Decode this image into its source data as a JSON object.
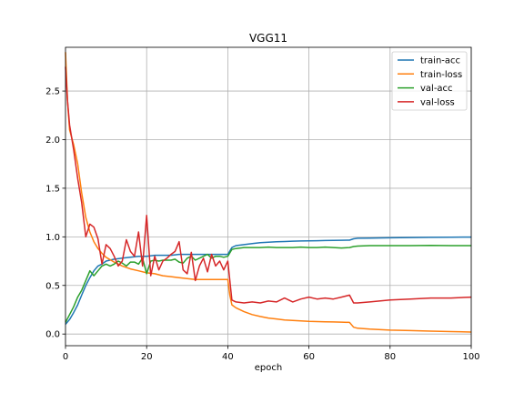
{
  "chart_data": {
    "type": "line",
    "title": "VGG11",
    "xlabel": "epoch",
    "ylabel": "",
    "xlim": [
      0,
      100
    ],
    "ylim": [
      -0.12,
      2.95
    ],
    "xticks": [
      0,
      20,
      40,
      60,
      80,
      100
    ],
    "yticks": [
      0.0,
      0.5,
      1.0,
      1.5,
      2.0,
      2.5
    ],
    "xtick_labels": [
      "0",
      "20",
      "40",
      "60",
      "80",
      "100"
    ],
    "ytick_labels": [
      "0.0",
      "0.5",
      "1.0",
      "1.5",
      "2.0",
      "2.5"
    ],
    "grid": true,
    "legend_position": "top-right",
    "series": [
      {
        "name": "train-acc",
        "color": "#1f77b4",
        "x": [
          0,
          1,
          2,
          3,
          4,
          5,
          6,
          7,
          8,
          9,
          10,
          12,
          14,
          16,
          18,
          20,
          22,
          24,
          26,
          28,
          30,
          32,
          34,
          36,
          38,
          40,
          41,
          42,
          44,
          46,
          48,
          50,
          52,
          54,
          56,
          58,
          60,
          62,
          64,
          66,
          68,
          70,
          71,
          72,
          75,
          80,
          85,
          90,
          95,
          100
        ],
        "values": [
          0.1,
          0.15,
          0.22,
          0.3,
          0.4,
          0.5,
          0.58,
          0.65,
          0.7,
          0.72,
          0.75,
          0.77,
          0.78,
          0.79,
          0.8,
          0.8,
          0.81,
          0.81,
          0.81,
          0.82,
          0.82,
          0.82,
          0.82,
          0.82,
          0.82,
          0.82,
          0.89,
          0.91,
          0.92,
          0.93,
          0.94,
          0.945,
          0.95,
          0.952,
          0.955,
          0.957,
          0.958,
          0.96,
          0.962,
          0.963,
          0.965,
          0.966,
          0.98,
          0.985,
          0.987,
          0.99,
          0.993,
          0.995,
          0.997,
          0.998
        ]
      },
      {
        "name": "train-loss",
        "color": "#ff7f0e",
        "x": [
          0,
          0.5,
          1,
          2,
          3,
          4,
          5,
          6,
          7,
          8,
          9,
          10,
          12,
          14,
          16,
          18,
          20,
          22,
          24,
          26,
          28,
          30,
          32,
          34,
          36,
          38,
          40,
          40.5,
          41,
          42,
          44,
          46,
          48,
          50,
          52,
          54,
          56,
          58,
          60,
          62,
          64,
          66,
          68,
          70,
          71,
          72,
          75,
          80,
          85,
          90,
          95,
          100
        ],
        "values": [
          2.9,
          2.4,
          2.1,
          1.95,
          1.75,
          1.45,
          1.2,
          1.05,
          0.95,
          0.88,
          0.83,
          0.79,
          0.74,
          0.7,
          0.67,
          0.65,
          0.63,
          0.62,
          0.6,
          0.59,
          0.58,
          0.57,
          0.56,
          0.56,
          0.56,
          0.56,
          0.56,
          0.4,
          0.3,
          0.27,
          0.23,
          0.2,
          0.18,
          0.165,
          0.155,
          0.145,
          0.14,
          0.135,
          0.13,
          0.128,
          0.126,
          0.124,
          0.122,
          0.12,
          0.07,
          0.06,
          0.05,
          0.04,
          0.035,
          0.03,
          0.025,
          0.02
        ]
      },
      {
        "name": "val-acc",
        "color": "#2ca02c",
        "x": [
          0,
          1,
          2,
          3,
          4,
          5,
          6,
          7,
          8,
          9,
          10,
          11,
          12,
          13,
          14,
          15,
          16,
          17,
          18,
          19,
          20,
          21,
          22,
          23,
          24,
          25,
          26,
          27,
          28,
          29,
          30,
          31,
          32,
          33,
          34,
          35,
          36,
          37,
          38,
          39,
          40,
          41,
          42,
          44,
          46,
          48,
          50,
          52,
          54,
          56,
          58,
          60,
          62,
          64,
          66,
          68,
          70,
          71,
          72,
          75,
          80,
          85,
          90,
          95,
          100
        ],
        "values": [
          0.12,
          0.2,
          0.28,
          0.38,
          0.45,
          0.55,
          0.65,
          0.6,
          0.65,
          0.7,
          0.72,
          0.7,
          0.72,
          0.75,
          0.73,
          0.7,
          0.74,
          0.74,
          0.72,
          0.78,
          0.62,
          0.75,
          0.76,
          0.75,
          0.76,
          0.76,
          0.76,
          0.77,
          0.74,
          0.73,
          0.78,
          0.8,
          0.76,
          0.78,
          0.8,
          0.82,
          0.78,
          0.8,
          0.8,
          0.79,
          0.8,
          0.87,
          0.88,
          0.89,
          0.89,
          0.89,
          0.895,
          0.89,
          0.89,
          0.89,
          0.895,
          0.89,
          0.89,
          0.895,
          0.89,
          0.885,
          0.89,
          0.9,
          0.905,
          0.91,
          0.91,
          0.91,
          0.912,
          0.91,
          0.91
        ]
      },
      {
        "name": "val-loss",
        "color": "#d62728",
        "x": [
          0,
          0.5,
          1,
          2,
          3,
          4,
          5,
          6,
          7,
          8,
          9,
          10,
          11,
          12,
          13,
          14,
          15,
          16,
          17,
          18,
          19,
          20,
          21,
          22,
          23,
          24,
          25,
          26,
          27,
          28,
          29,
          30,
          31,
          32,
          33,
          34,
          35,
          36,
          37,
          38,
          39,
          40,
          41,
          42,
          44,
          46,
          48,
          50,
          52,
          54,
          56,
          58,
          60,
          62,
          64,
          66,
          68,
          70,
          71,
          72,
          75,
          80,
          85,
          90,
          95,
          100
        ],
        "values": [
          2.75,
          2.4,
          2.15,
          1.9,
          1.6,
          1.35,
          1.0,
          1.13,
          1.1,
          0.98,
          0.72,
          0.92,
          0.88,
          0.8,
          0.7,
          0.75,
          0.97,
          0.85,
          0.8,
          1.05,
          0.7,
          1.22,
          0.6,
          0.8,
          0.66,
          0.75,
          0.78,
          0.82,
          0.85,
          0.95,
          0.66,
          0.62,
          0.84,
          0.55,
          0.7,
          0.78,
          0.64,
          0.82,
          0.7,
          0.75,
          0.66,
          0.75,
          0.35,
          0.33,
          0.32,
          0.33,
          0.32,
          0.34,
          0.33,
          0.37,
          0.33,
          0.36,
          0.38,
          0.36,
          0.37,
          0.36,
          0.38,
          0.4,
          0.32,
          0.32,
          0.33,
          0.35,
          0.36,
          0.37,
          0.37,
          0.38
        ]
      }
    ]
  }
}
